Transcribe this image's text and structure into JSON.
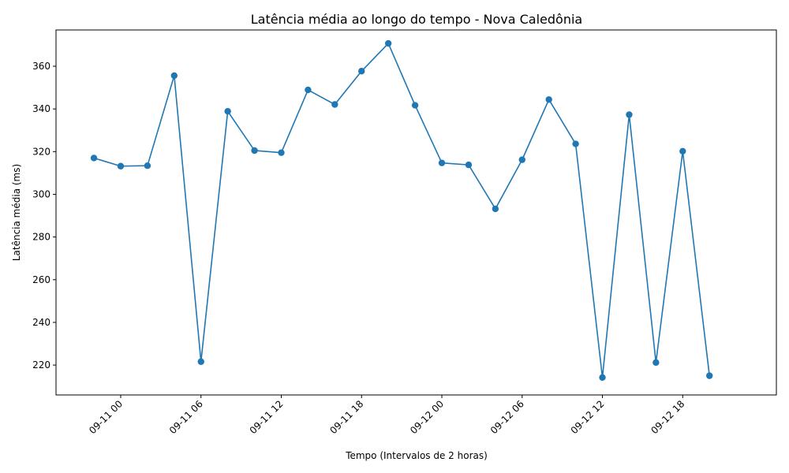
{
  "chart_data": {
    "type": "line",
    "title": "Latência média ao longo do tempo - Nova Caledônia",
    "xlabel": "Tempo (Intervalos de 2 horas)",
    "ylabel": "Latência média (ms)",
    "line_color": "#1f77b4",
    "marker": "circle",
    "grid": false,
    "legend": "none",
    "x_ticks": [
      {
        "t": "2024-09-11T00:00",
        "label": "09-11 00"
      },
      {
        "t": "2024-09-11T06:00",
        "label": "09-11 06"
      },
      {
        "t": "2024-09-11T12:00",
        "label": "09-11 12"
      },
      {
        "t": "2024-09-11T18:00",
        "label": "09-11 18"
      },
      {
        "t": "2024-09-12T00:00",
        "label": "09-12 00"
      },
      {
        "t": "2024-09-12T06:00",
        "label": "09-12 06"
      },
      {
        "t": "2024-09-12T12:00",
        "label": "09-12 12"
      },
      {
        "t": "2024-09-12T18:00",
        "label": "09-12 18"
      }
    ],
    "y_ticks": [
      220,
      240,
      260,
      280,
      300,
      320,
      340,
      360
    ],
    "xlim": [
      "2024-09-10T19:10",
      "2024-09-13T01:00"
    ],
    "ylim": [
      206,
      377
    ],
    "points": [
      {
        "x": "2024-09-10T22:00",
        "y": 317.0
      },
      {
        "x": "2024-09-11T00:00",
        "y": 313.2
      },
      {
        "x": "2024-09-11T02:00",
        "y": 313.4
      },
      {
        "x": "2024-09-11T04:00",
        "y": 355.6
      },
      {
        "x": "2024-09-11T06:00",
        "y": 221.6
      },
      {
        "x": "2024-09-11T08:00",
        "y": 338.9
      },
      {
        "x": "2024-09-11T10:00",
        "y": 320.5
      },
      {
        "x": "2024-09-11T12:00",
        "y": 319.5
      },
      {
        "x": "2024-09-11T14:00",
        "y": 348.9
      },
      {
        "x": "2024-09-11T16:00",
        "y": 342.1
      },
      {
        "x": "2024-09-11T18:00",
        "y": 357.7
      },
      {
        "x": "2024-09-11T20:00",
        "y": 370.7
      },
      {
        "x": "2024-09-11T22:00",
        "y": 341.7
      },
      {
        "x": "2024-09-12T00:00",
        "y": 314.7
      },
      {
        "x": "2024-09-12T02:00",
        "y": 313.8
      },
      {
        "x": "2024-09-12T04:00",
        "y": 293.2
      },
      {
        "x": "2024-09-12T06:00",
        "y": 316.2
      },
      {
        "x": "2024-09-12T08:00",
        "y": 344.4
      },
      {
        "x": "2024-09-12T10:00",
        "y": 323.6
      },
      {
        "x": "2024-09-12T12:00",
        "y": 214.2
      },
      {
        "x": "2024-09-12T14:00",
        "y": 337.3
      },
      {
        "x": "2024-09-12T16:00",
        "y": 221.2
      },
      {
        "x": "2024-09-12T18:00",
        "y": 320.2
      },
      {
        "x": "2024-09-12T20:00",
        "y": 215.0
      }
    ]
  }
}
